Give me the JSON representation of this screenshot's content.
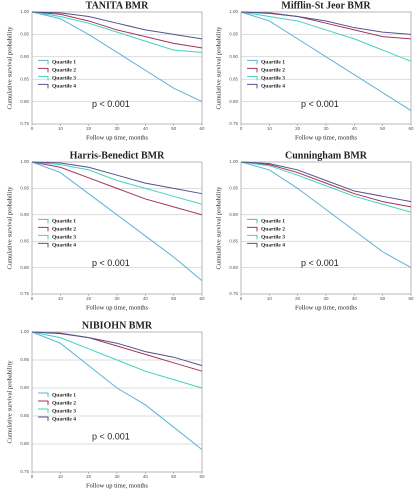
{
  "chart_data": [
    {
      "type": "line",
      "title": "TANITA BMR",
      "x_label": "Follow up time, months",
      "y_label": "Cumulative survival probability",
      "annotation": "p < 0.001",
      "x": [
        0,
        10,
        20,
        30,
        40,
        50,
        60
      ],
      "xlim": [
        0,
        60
      ],
      "xticks": [
        0,
        10,
        20,
        30,
        40,
        50,
        60
      ],
      "ylim": [
        0.75,
        1
      ],
      "yticks": [
        {
          "value": 0.75,
          "label": "0.75"
        },
        {
          "value": 0.8,
          "label": "0.80"
        },
        {
          "value": 0.85,
          "label": "0.85"
        },
        {
          "value": 0.9,
          "label": "0.90"
        },
        {
          "value": 0.95,
          "label": "0.95"
        },
        {
          "value": 1,
          "label": "1.00"
        }
      ],
      "grid": true,
      "series": [
        {
          "name": "Quartile 1",
          "color": "#5ab4d6",
          "values": [
            1,
            0.985,
            0.95,
            0.91,
            0.87,
            0.83,
            0.8
          ]
        },
        {
          "name": "Quartile 2",
          "color": "#a3335a",
          "values": [
            1,
            0.995,
            0.98,
            0.96,
            0.945,
            0.93,
            0.92
          ]
        },
        {
          "name": "Quartile 3",
          "color": "#3fd4be",
          "values": [
            1,
            0.99,
            0.975,
            0.955,
            0.935,
            0.915,
            0.91
          ]
        },
        {
          "name": "Quartile 4",
          "color": "#55528f",
          "values": [
            1,
            0.998,
            0.99,
            0.975,
            0.96,
            0.95,
            0.94
          ]
        }
      ]
    },
    {
      "type": "line",
      "title": "Mifflin-St Jeor BMR",
      "x_label": "Follow up time, months",
      "y_label": "Cumulative survival probability",
      "annotation": "p < 0.001",
      "x": [
        0,
        10,
        20,
        30,
        40,
        50,
        60
      ],
      "xlim": [
        0,
        60
      ],
      "xticks": [
        0,
        10,
        20,
        30,
        40,
        50,
        60
      ],
      "ylim": [
        0.75,
        1
      ],
      "yticks": [
        {
          "value": 0.75,
          "label": "0.75"
        },
        {
          "value": 0.8,
          "label": "0.80"
        },
        {
          "value": 0.85,
          "label": "0.85"
        },
        {
          "value": 0.9,
          "label": "0.90"
        },
        {
          "value": 0.95,
          "label": "0.95"
        },
        {
          "value": 1,
          "label": "1.00"
        }
      ],
      "grid": true,
      "series": [
        {
          "name": "Quartile 1",
          "color": "#5ab4d6",
          "values": [
            1,
            0.98,
            0.94,
            0.9,
            0.86,
            0.82,
            0.78
          ]
        },
        {
          "name": "Quartile 2",
          "color": "#a3335a",
          "values": [
            1,
            0.997,
            0.99,
            0.975,
            0.96,
            0.945,
            0.94
          ]
        },
        {
          "name": "Quartile 3",
          "color": "#3fd4be",
          "values": [
            1,
            0.99,
            0.98,
            0.96,
            0.94,
            0.915,
            0.89
          ]
        },
        {
          "name": "Quartile 4",
          "color": "#55528f",
          "values": [
            1,
            0.998,
            0.99,
            0.98,
            0.965,
            0.955,
            0.95
          ]
        }
      ]
    },
    {
      "type": "line",
      "title": "Harris-Benedict BMR",
      "x_label": "Follow up time, months",
      "y_label": "Cumulative survival probability",
      "annotation": "p < 0.001",
      "x": [
        0,
        10,
        20,
        30,
        40,
        50,
        60
      ],
      "xlim": [
        0,
        60
      ],
      "xticks": [
        0,
        10,
        20,
        30,
        40,
        50,
        60
      ],
      "ylim": [
        0.75,
        1
      ],
      "yticks": [
        {
          "value": 0.75,
          "label": "0.75"
        },
        {
          "value": 0.8,
          "label": "0.80"
        },
        {
          "value": 0.85,
          "label": "0.85"
        },
        {
          "value": 0.9,
          "label": "0.90"
        },
        {
          "value": 0.95,
          "label": "0.95"
        },
        {
          "value": 1,
          "label": "1.00"
        }
      ],
      "grid": true,
      "series": [
        {
          "name": "Quartile 1",
          "color": "#5ab4d6",
          "values": [
            1,
            0.98,
            0.94,
            0.9,
            0.86,
            0.82,
            0.775
          ]
        },
        {
          "name": "Quartile 2",
          "color": "#a3335a",
          "values": [
            1,
            0.99,
            0.97,
            0.95,
            0.93,
            0.915,
            0.9
          ]
        },
        {
          "name": "Quartile 3",
          "color": "#3fd4be",
          "values": [
            1,
            0.995,
            0.985,
            0.965,
            0.95,
            0.935,
            0.92
          ]
        },
        {
          "name": "Quartile 4",
          "color": "#55528f",
          "values": [
            1,
            0.998,
            0.99,
            0.975,
            0.96,
            0.95,
            0.94
          ]
        }
      ]
    },
    {
      "type": "line",
      "title": "Cunningham BMR",
      "x_label": "Follow up time, months",
      "y_label": "Cumulative survival probability",
      "annotation": "p < 0.001",
      "x": [
        0,
        10,
        20,
        30,
        40,
        50,
        60
      ],
      "xlim": [
        0,
        60
      ],
      "xticks": [
        0,
        10,
        20,
        30,
        40,
        50,
        60
      ],
      "ylim": [
        0.75,
        1
      ],
      "yticks": [
        {
          "value": 0.75,
          "label": "0.75"
        },
        {
          "value": 0.8,
          "label": "0.80"
        },
        {
          "value": 0.85,
          "label": "0.85"
        },
        {
          "value": 0.9,
          "label": "0.90"
        },
        {
          "value": 0.95,
          "label": "0.95"
        },
        {
          "value": 1,
          "label": "1.00"
        }
      ],
      "grid": true,
      "series": [
        {
          "name": "Quartile 1",
          "color": "#5ab4d6",
          "values": [
            1,
            0.985,
            0.95,
            0.91,
            0.87,
            0.83,
            0.8
          ]
        },
        {
          "name": "Quartile 2",
          "color": "#a3335a",
          "values": [
            1,
            0.995,
            0.98,
            0.96,
            0.94,
            0.925,
            0.915
          ]
        },
        {
          "name": "Quartile 3",
          "color": "#3fd4be",
          "values": [
            1,
            0.993,
            0.975,
            0.955,
            0.935,
            0.92,
            0.905
          ]
        },
        {
          "name": "Quartile 4",
          "color": "#55528f",
          "values": [
            1,
            0.997,
            0.985,
            0.965,
            0.945,
            0.935,
            0.925
          ]
        }
      ]
    },
    {
      "type": "line",
      "title": "NIBIOHN BMR",
      "x_label": "Follow up time, months",
      "y_label": "Cumulative survival probability",
      "annotation": "p < 0.001",
      "x": [
        0,
        10,
        20,
        30,
        40,
        50,
        60
      ],
      "xlim": [
        0,
        60
      ],
      "xticks": [
        0,
        10,
        20,
        30,
        40,
        50,
        60
      ],
      "ylim": [
        0.75,
        1
      ],
      "yticks": [
        {
          "value": 0.75,
          "label": "0.75"
        },
        {
          "value": 0.8,
          "label": "0.80"
        },
        {
          "value": 0.85,
          "label": "0.85"
        },
        {
          "value": 0.9,
          "label": "0.90"
        },
        {
          "value": 0.95,
          "label": "0.95"
        },
        {
          "value": 1,
          "label": "1.00"
        }
      ],
      "grid": true,
      "series": [
        {
          "name": "Quartile 1",
          "color": "#5ab4d6",
          "values": [
            1,
            0.98,
            0.94,
            0.9,
            0.87,
            0.83,
            0.79
          ]
        },
        {
          "name": "Quartile 2",
          "color": "#a3335a",
          "values": [
            1,
            0.997,
            0.99,
            0.975,
            0.96,
            0.945,
            0.93
          ]
        },
        {
          "name": "Quartile 3",
          "color": "#3fd4be",
          "values": [
            1,
            0.99,
            0.97,
            0.95,
            0.93,
            0.915,
            0.9
          ]
        },
        {
          "name": "Quartile 4",
          "color": "#55528f",
          "values": [
            1,
            0.998,
            0.99,
            0.98,
            0.965,
            0.955,
            0.94
          ]
        }
      ]
    }
  ]
}
